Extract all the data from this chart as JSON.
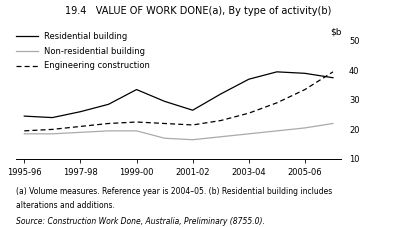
{
  "title": "19.4   VALUE OF WORK DONE(a), By type of activity(b)",
  "x_labels": [
    "1995-96",
    "1997-98",
    "1999-00",
    "2001-02",
    "2003-04",
    "2005-06"
  ],
  "x_tick_positions": [
    0,
    2,
    4,
    6,
    8,
    10
  ],
  "residential": [
    24.5,
    24.0,
    26.0,
    28.5,
    33.5,
    29.5,
    26.5,
    32.0,
    37.0,
    39.5,
    39.0,
    37.5
  ],
  "non_residential": [
    18.5,
    18.5,
    19.0,
    19.5,
    19.5,
    17.0,
    16.5,
    17.5,
    18.5,
    19.5,
    20.5,
    22.0
  ],
  "engineering": [
    19.5,
    20.0,
    21.0,
    22.0,
    22.5,
    22.0,
    21.5,
    23.0,
    25.5,
    29.0,
    33.5,
    39.5
  ],
  "ylim": [
    10,
    50
  ],
  "yticks": [
    10,
    20,
    30,
    40,
    50
  ],
  "legend_labels": [
    "Residential building",
    "Non-residential building",
    "Engineering construction"
  ],
  "line_colors": [
    "#000000",
    "#aaaaaa",
    "#000000"
  ],
  "line_styles": [
    "-",
    "-",
    "--"
  ],
  "footnote1": "(a) Volume measures. Reference year is 2004–05. (b) Residential building includes",
  "footnote2": "alterations and additions.",
  "source": "Source: Construction Work Done, Australia, Preliminary (8755.0).",
  "background_color": "#ffffff"
}
